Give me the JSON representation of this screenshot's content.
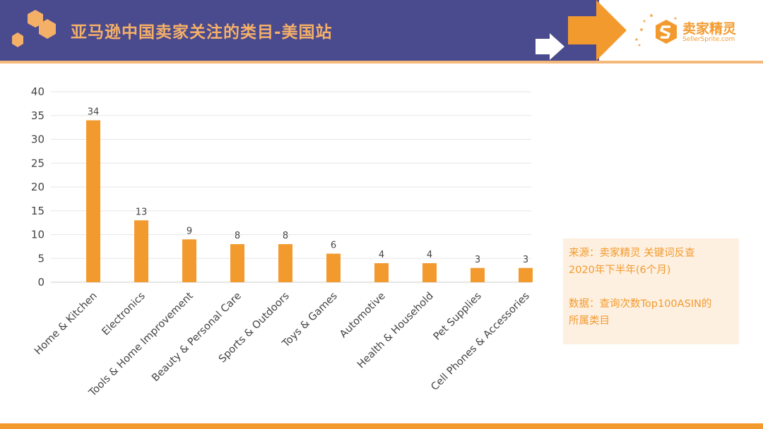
{
  "header": {
    "title": "亚马逊中国卖家关注的类目-美国站",
    "logo_cn": "卖家精灵",
    "logo_en": "SellerSprite.com",
    "colors": {
      "bar": "#4a4a8e",
      "accent": "#f39a2e",
      "title": "#f5b068"
    }
  },
  "note": {
    "line1": "来源：卖家精灵 关键词反查",
    "line2": "2020年下半年(6个月)",
    "line3": "数据：查询次数Top100ASIN的",
    "line4": "所属类目"
  },
  "chart_data": {
    "type": "bar",
    "categories": [
      "Home & Kitchen",
      "Electronics",
      "Tools & Home Improvement",
      "Beauty & Personal Care",
      "Sports & Outdoors",
      "Toys & Games",
      "Automotive",
      "Health & Household",
      "Pet Supplies",
      "Cell Phones & Accessories"
    ],
    "values": [
      34,
      13,
      9,
      8,
      8,
      6,
      4,
      4,
      3,
      3
    ],
    "ylim": [
      0,
      40
    ],
    "yticks": [
      0,
      5,
      10,
      15,
      20,
      25,
      30,
      35,
      40
    ],
    "grid": true,
    "bar_color": "#f39a2e"
  }
}
